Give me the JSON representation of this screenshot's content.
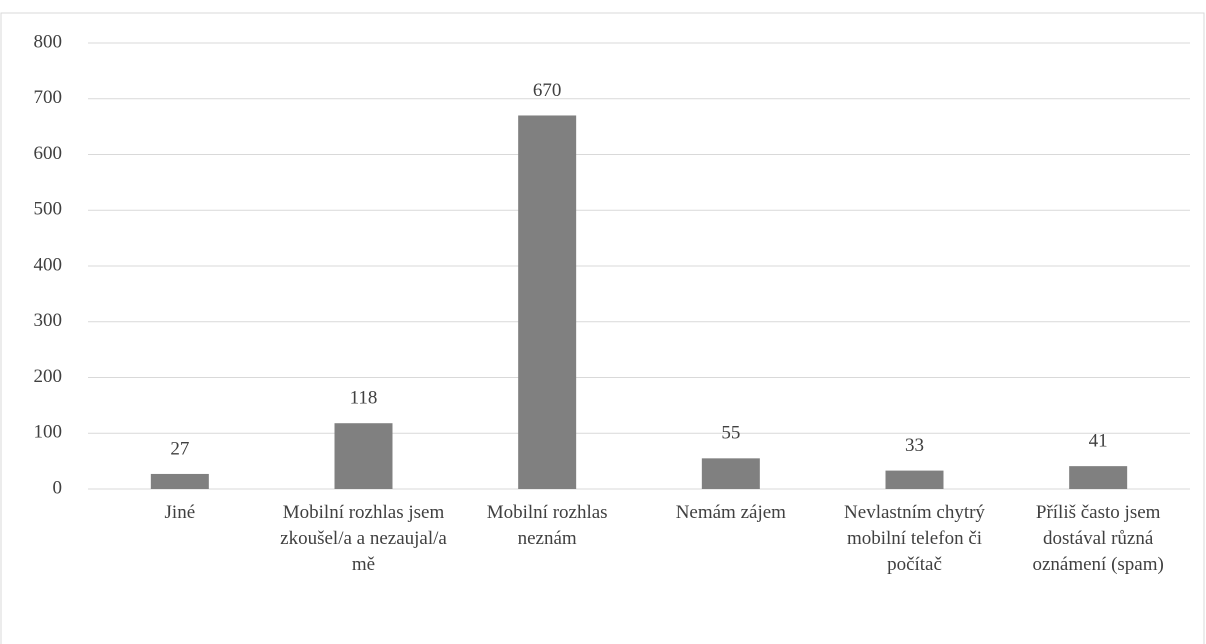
{
  "chart_data": {
    "type": "bar",
    "categories": [
      "Jiné",
      "Mobilní rozhlas jsem zkoušel/a a nezaujal/a mě",
      "Mobilní rozhlas neznám",
      "Nemám zájem",
      "Nevlastním chytrý mobilní telefon či počítač",
      "Příliš často jsem dostával různá oznámení (spam)"
    ],
    "values": [
      27,
      118,
      670,
      55,
      33,
      41
    ],
    "color": "#808080",
    "ylim": [
      0,
      800
    ],
    "yticks": [
      0,
      100,
      200,
      300,
      400,
      500,
      600,
      700,
      800
    ],
    "grid": true
  }
}
